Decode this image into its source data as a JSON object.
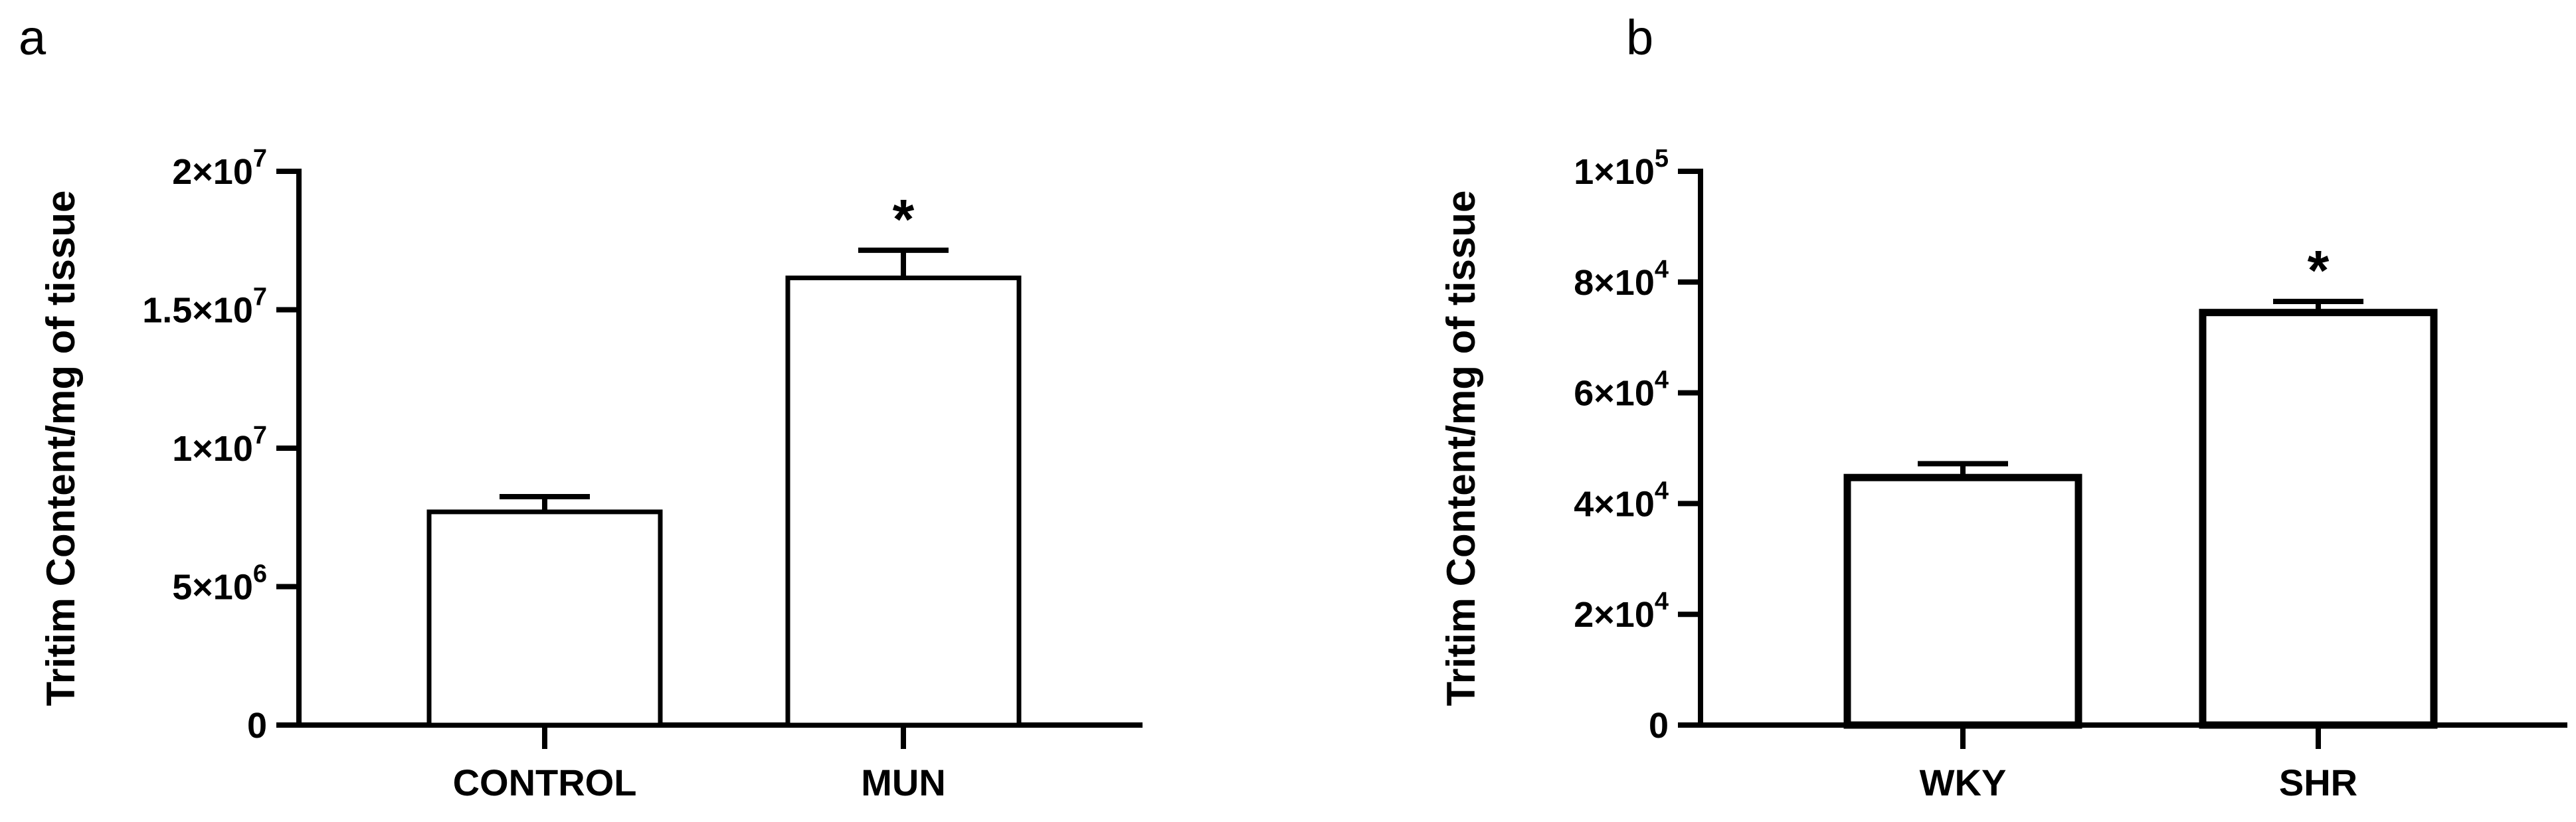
{
  "figure": {
    "panel_a": {
      "letter": "a"
    },
    "panel_b": {
      "letter": "b"
    }
  },
  "chart_data": [
    {
      "type": "bar",
      "title": "",
      "xlabel": "",
      "ylabel": "Tritim Content/mg of tissue",
      "categories": [
        "CONTROL",
        "MUN"
      ],
      "values": [
        7700000,
        16150000
      ],
      "errors": [
        550000,
        1000000
      ],
      "annotations": [
        "",
        "*"
      ],
      "ylim": [
        0,
        20000000
      ],
      "yticks": [
        {
          "value": 0,
          "mantissa": "0",
          "exp": ""
        },
        {
          "value": 5000000,
          "mantissa": "5×10",
          "exp": "6"
        },
        {
          "value": 10000000,
          "mantissa": "1×10",
          "exp": "7"
        },
        {
          "value": 15000000,
          "mantissa": "1.5×10",
          "exp": "7"
        },
        {
          "value": 20000000,
          "mantissa": "2×10",
          "exp": "7"
        }
      ],
      "grid": false,
      "bar_fill": "#ffffff",
      "bar_stroke": "#000000"
    },
    {
      "type": "bar",
      "title": "",
      "xlabel": "",
      "ylabel": "Tritim Content/mg of tissue",
      "categories": [
        "WKY",
        "SHR"
      ],
      "values": [
        44700,
        74500
      ],
      "errors": [
        2500,
        2000
      ],
      "annotations": [
        "",
        "*"
      ],
      "ylim": [
        0,
        100000
      ],
      "yticks": [
        {
          "value": 0,
          "mantissa": "0",
          "exp": ""
        },
        {
          "value": 20000,
          "mantissa": "2×10",
          "exp": "4"
        },
        {
          "value": 40000,
          "mantissa": "4×10",
          "exp": "4"
        },
        {
          "value": 60000,
          "mantissa": "6×10",
          "exp": "4"
        },
        {
          "value": 80000,
          "mantissa": "8×10",
          "exp": "4"
        },
        {
          "value": 100000,
          "mantissa": "1×10",
          "exp": "5"
        }
      ],
      "grid": false,
      "bar_fill": "#ffffff",
      "bar_stroke": "#000000"
    }
  ]
}
